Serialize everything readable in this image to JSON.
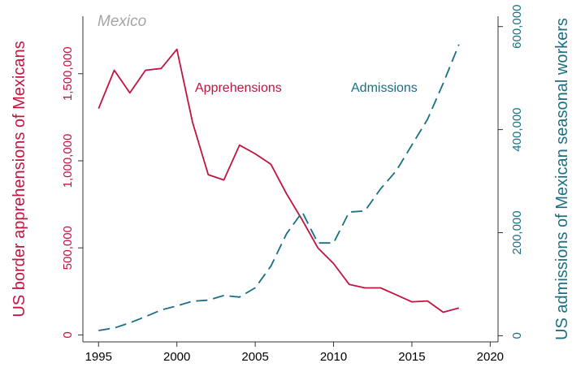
{
  "colors": {
    "apprehensions": "#c1143f",
    "admissions": "#1a6f80",
    "axis": "#333333",
    "panel_title": "#a6a6a6"
  },
  "chart_data": {
    "type": "line",
    "title": "Mexico",
    "xlabel": "",
    "ylabel_left": "US border apprehensions of Mexicans",
    "ylabel_right": "US admissions of Mexican seasonal workers",
    "xlim": [
      1994,
      2020.5
    ],
    "ylim_left": [
      -40000,
      1830000
    ],
    "ylim_right": [
      -12000,
      620000
    ],
    "x_ticks": [
      1995,
      2000,
      2005,
      2010,
      2015,
      2020
    ],
    "x_tick_labels": [
      "1995",
      "2000",
      "2005",
      "2010",
      "2015",
      "2020"
    ],
    "y_left_ticks": [
      0,
      500000,
      1000000,
      1500000
    ],
    "y_left_tick_labels": [
      "0",
      "500,000",
      "1,000,000",
      "1,500,000"
    ],
    "y_right_ticks": [
      0,
      200000,
      400000,
      600000
    ],
    "y_right_tick_labels": [
      "0",
      "200,000",
      "400,000",
      "600,000"
    ],
    "grid": false,
    "legend": "none",
    "series": [
      {
        "name": "Apprehensions",
        "axis": "left",
        "style": "solid",
        "x": [
          1995,
          1996,
          1997,
          1998,
          1999,
          2000,
          2001,
          2002,
          2003,
          2004,
          2005,
          2006,
          2007,
          2008,
          2009,
          2010,
          2011,
          2012,
          2013,
          2014,
          2015,
          2016,
          2017,
          2018
        ],
        "values": [
          1300000,
          1520000,
          1390000,
          1520000,
          1530000,
          1640000,
          1220000,
          920000,
          890000,
          1090000,
          1040000,
          980000,
          810000,
          660000,
          500000,
          410000,
          290000,
          270000,
          270000,
          230000,
          190000,
          195000,
          130000,
          155000
        ]
      },
      {
        "name": "Admissions",
        "axis": "right",
        "style": "dashed",
        "x": [
          1995,
          1996,
          1997,
          1998,
          1999,
          2000,
          2001,
          2002,
          2003,
          2004,
          2005,
          2006,
          2007,
          2008,
          2009,
          2010,
          2011,
          2012,
          2013,
          2014,
          2015,
          2016,
          2017,
          2018
        ],
        "values": [
          10000,
          15000,
          25000,
          37000,
          50000,
          58000,
          67000,
          69000,
          78000,
          75000,
          93000,
          135000,
          198000,
          240000,
          180000,
          180000,
          240000,
          242000,
          285000,
          320000,
          370000,
          420000,
          490000,
          565000
        ]
      }
    ]
  }
}
